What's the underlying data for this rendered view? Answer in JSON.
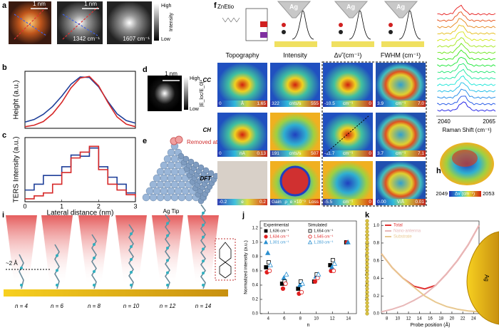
{
  "panel_letters": [
    "a",
    "b",
    "c",
    "d",
    "e",
    "f",
    "g",
    "h",
    "i",
    "j",
    "k"
  ],
  "a": {
    "scale_bars": [
      "1 nm",
      "1 nm"
    ],
    "freqs": [
      "1342 cm⁻¹",
      "1607 cm⁻¹"
    ],
    "cbar_high": "High",
    "cbar_label": "Intensity",
    "cbar_low": "Low"
  },
  "d": {
    "scale_bar": "1 nm",
    "high": "High",
    "low": "Low",
    "label": "|E_loc/E_0|²"
  },
  "e": {
    "removed": "Removed atoms",
    "tip": "Ag Tip"
  },
  "f": {
    "molecule": "ZnEtio",
    "tips": [
      "Ag",
      "Ag",
      "Ag"
    ],
    "columns": [
      "Topography",
      "Intensity",
      "Δν̃ (cm⁻¹)",
      "FWHM (cm⁻¹)"
    ],
    "rows": [
      "CC",
      "CH",
      "DFT"
    ],
    "scales": [
      [
        [
          "0",
          "Å",
          "1.65"
        ],
        [
          "322",
          "cnts/s",
          "555"
        ],
        [
          "-10.5",
          "cm⁻¹",
          "0"
        ],
        [
          "3.9",
          "cm⁻¹",
          "7.0"
        ]
      ],
      [
        [
          "0",
          "nA",
          "0.13"
        ],
        [
          "191",
          "cnts/s",
          "507"
        ],
        [
          "-11.7",
          "cm⁻¹",
          "0"
        ],
        [
          "3.7",
          "cm⁻¹",
          "7.1"
        ]
      ],
      [
        [
          "-0.2",
          "e",
          "0.2"
        ],
        [
          "Gain",
          "ρ_e ×10⁻³",
          "Loss"
        ],
        [
          "-5.5",
          "cm⁻¹",
          "0"
        ],
        [
          "0.00",
          "V/Å",
          "0.01"
        ]
      ]
    ]
  },
  "g": {
    "ticks": [
      "2040",
      "2065"
    ],
    "xlabel": "Raman Shift (cm⁻¹)"
  },
  "h": {
    "min": "2049",
    "label": "Δν̃ (cm⁻¹)",
    "max": "2053"
  },
  "i": {
    "spacing": "~2 Å",
    "n_labels": [
      "n = 4",
      "n = 6",
      "n = 8",
      "n = 10",
      "n = 12",
      "n = 14"
    ]
  },
  "k_tip": "Ag",
  "chart_data": [
    {
      "type": "line",
      "ylabel": "Height (a.u.)",
      "xlim": [
        0,
        3
      ],
      "ylim": [
        0,
        1.1
      ],
      "x": [
        0,
        0.25,
        0.5,
        0.75,
        1,
        1.25,
        1.5,
        1.75,
        2,
        2.25,
        2.5,
        2.75,
        3
      ],
      "series": [
        {
          "color": "#1f3f99",
          "values": [
            0.12,
            0.17,
            0.27,
            0.42,
            0.62,
            0.85,
            0.99,
            0.98,
            0.8,
            0.52,
            0.28,
            0.15,
            0.1
          ]
        },
        {
          "color": "#d62828",
          "values": [
            0.03,
            0.06,
            0.13,
            0.28,
            0.5,
            0.78,
            0.97,
            1.0,
            0.82,
            0.5,
            0.22,
            0.08,
            0.03
          ]
        }
      ]
    },
    {
      "type": "line",
      "step": true,
      "ylabel": "TERS Intensity (a.u.)",
      "xlabel": "Lateral distance (nm)",
      "xlim": [
        0,
        3
      ],
      "ylim": [
        0,
        1.1
      ],
      "xticks": [
        0,
        1,
        2,
        3
      ],
      "x": [
        0,
        0.25,
        0.5,
        0.75,
        1,
        1.25,
        1.5,
        1.75,
        2,
        2.25,
        2.5,
        2.75,
        3
      ],
      "series": [
        {
          "color": "#1f3f99",
          "values": [
            0.2,
            0.3,
            0.45,
            0.45,
            0.6,
            0.8,
            0.78,
            0.92,
            0.6,
            0.42,
            0.3,
            0.15,
            0.15
          ]
        },
        {
          "color": "#d62828",
          "values": [
            0.05,
            0.1,
            0.15,
            0.3,
            0.5,
            0.75,
            0.85,
            0.95,
            0.55,
            0.3,
            0.2,
            0.12,
            0.08
          ]
        }
      ]
    },
    {
      "type": "scatter",
      "xlabel": "n",
      "ylabel": "Normalized intensity (a.u.)",
      "xlim": [
        3,
        15
      ],
      "ylim": [
        0,
        1.3
      ],
      "xticks": [
        4,
        6,
        8,
        10,
        12,
        14
      ],
      "yticks": [
        {
          "value": 0,
          "label": "0.0"
        },
        0.2,
        0.4,
        0.6,
        0.8,
        {
          "value": 1,
          "label": "1.0"
        },
        1.2
      ],
      "legend_titles": [
        "Experimental",
        "Simulated"
      ],
      "x": [
        4,
        6,
        8,
        10,
        12,
        14
      ],
      "series": [
        {
          "name": "1,636 cm⁻¹",
          "color": "#000000",
          "marker": "square",
          "filled": true,
          "values": [
            0.65,
            0.42,
            0.35,
            0.45,
            0.68,
            1.0
          ]
        },
        {
          "name": "1,634 cm⁻¹",
          "color": "#e02020",
          "marker": "circle",
          "filled": true,
          "values": [
            0.58,
            0.35,
            0.28,
            0.45,
            0.6,
            1.0
          ]
        },
        {
          "name": "1,301 cm⁻¹",
          "color": "#2a8fd0",
          "marker": "triangle",
          "filled": true,
          "values": [
            0.85,
            0.5,
            0.4,
            0.52,
            0.65,
            1.0
          ]
        },
        {
          "name": "1,654 cm⁻¹",
          "color": "#000000",
          "marker": "square",
          "filled": false,
          "values": [
            0.72,
            0.45,
            0.45,
            0.55,
            0.75,
            null
          ]
        },
        {
          "name": "1,545 cm⁻¹",
          "color": "#e02020",
          "marker": "circle",
          "filled": false,
          "values": [
            0.6,
            0.42,
            0.3,
            0.5,
            0.6,
            null
          ]
        },
        {
          "name": "1,283 cm⁻¹",
          "color": "#2a8fd0",
          "marker": "triangle",
          "filled": false,
          "values": [
            0.68,
            0.55,
            0.42,
            0.55,
            0.7,
            null
          ]
        }
      ]
    },
    {
      "type": "line",
      "xlabel": "Probe position (Å)",
      "ylabel": "Normalized field amplitude (a.u.)",
      "xlim": [
        7,
        25
      ],
      "ylim": [
        0,
        1.05
      ],
      "xticks": [
        8,
        10,
        12,
        14,
        16,
        18,
        20,
        22,
        24
      ],
      "yticks": [
        {
          "value": 0,
          "label": "0.0"
        },
        0.2,
        0.4,
        0.6,
        0.8,
        {
          "value": 1,
          "label": "1.0"
        }
      ],
      "x": [
        7,
        9,
        11,
        13,
        15,
        17,
        19,
        21,
        23,
        25
      ],
      "series": [
        {
          "name": "Total",
          "color": "#e03030",
          "values": [
            0.68,
            0.52,
            0.4,
            0.31,
            0.28,
            0.32,
            0.45,
            0.6,
            0.78,
            1.0
          ]
        },
        {
          "name": "Nano-antenna",
          "color": "#e8b8b8",
          "values": [
            0.02,
            0.05,
            0.09,
            0.15,
            0.22,
            0.32,
            0.45,
            0.6,
            0.78,
            1.0
          ]
        },
        {
          "name": "Substrate",
          "color": "#e8c890",
          "values": [
            0.68,
            0.52,
            0.4,
            0.3,
            0.2,
            0.13,
            0.08,
            0.05,
            0.03,
            0.02
          ]
        }
      ]
    }
  ]
}
